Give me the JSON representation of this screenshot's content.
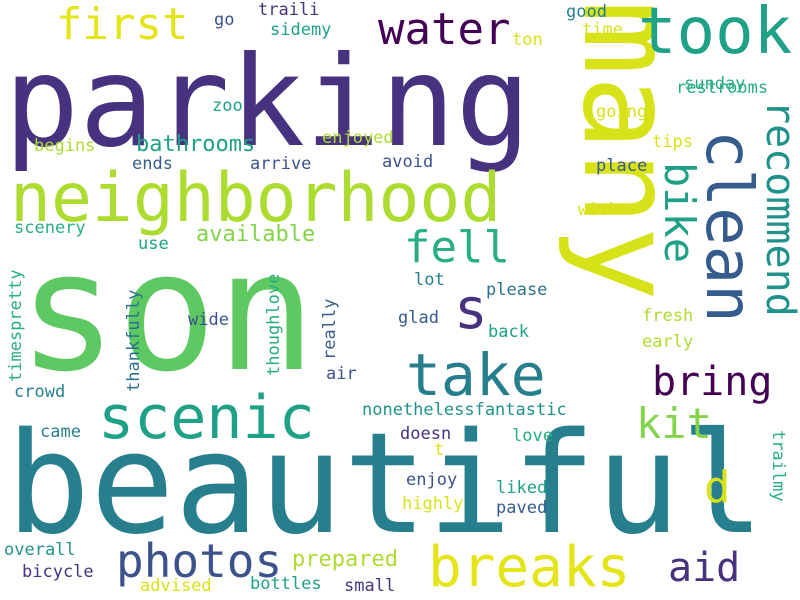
{
  "words": {
    "parking": "parking",
    "son": "son",
    "beautiful": "beautiful",
    "many": "many",
    "neighborhood": "neighborhood",
    "took": "took",
    "clean": "clean",
    "scenic": "scenic",
    "take": "take",
    "breaks": "breaks",
    "water": "water",
    "first": "first",
    "photos": "photos",
    "recommend": "recommend",
    "fell": "fell",
    "bike": "bike",
    "bring": "bring",
    "kit": "kit",
    "aid": "aid",
    "s": "s",
    "d": "d",
    "prepared": "prepared",
    "available": "available",
    "bathrooms": "bathrooms",
    "restrooms": "restrooms",
    "sunday": "sunday",
    "good": "good",
    "time": "time",
    "ton": "ton",
    "traili": "traili",
    "sidemy": "sidemy",
    "go": "go",
    "zoo": "zoo",
    "going": "going",
    "tips": "tips",
    "place": "place",
    "wish": "wish",
    "enjoyed": "enjoyed",
    "begins": "begins",
    "ends": "ends",
    "arrive": "arrive",
    "avoid": "avoid",
    "scenery": "scenery",
    "use": "use",
    "timespretty": "timespretty",
    "thankfully": "thankfully",
    "wide": "wide",
    "thoughlove": "thoughlove",
    "really": "really",
    "lot": "lot",
    "please": "please",
    "glad": "glad",
    "fresh": "fresh",
    "back": "back",
    "early": "early",
    "air": "air",
    "crowd": "crowd",
    "nonethelessfantastic": "nonethelessfantastic",
    "came": "came",
    "doesn": "doesn",
    "t": "t",
    "love": "love",
    "trailmy": "trailmy",
    "enjoy": "enjoy",
    "liked": "liked",
    "highly": "highly",
    "paved": "paved",
    "overall": "overall",
    "bicycle": "bicycle",
    "advised": "advised",
    "bottles": "bottles",
    "small": "small"
  }
}
